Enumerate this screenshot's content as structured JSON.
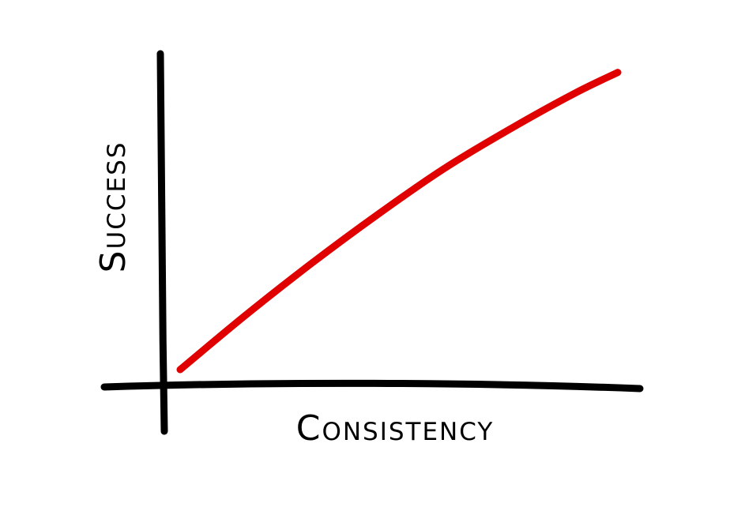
{
  "chart_data": {
    "type": "line",
    "title": "",
    "xlabel": "Consistency",
    "ylabel": "Success",
    "grid": false,
    "legend": "none",
    "xlim": [
      0,
      10
    ],
    "ylim": [
      0,
      10
    ],
    "series": [
      {
        "color": "#e00000",
        "x": [
          0,
          1.5,
          3,
          4.5,
          6,
          7.5,
          9,
          10
        ],
        "y": [
          0,
          1.8,
          3.5,
          5.1,
          6.6,
          7.9,
          9.1,
          9.8
        ]
      }
    ]
  },
  "colors": {
    "axis": "#000000",
    "background": "#ffffff"
  }
}
